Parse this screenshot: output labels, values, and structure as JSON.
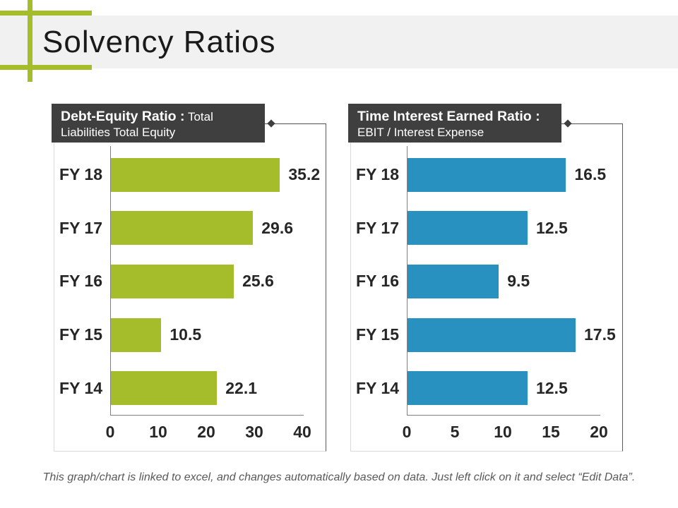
{
  "title": "Solvency Ratios",
  "footer": {
    "text": "This graph/chart is linked to excel, and changes automatically based on data. Just left click on it and select “Edit Data”."
  },
  "colors": {
    "accent_green": "#a5bc2b",
    "accent_blue": "#2991bf",
    "header_box": "#3f3f3f",
    "title_band": "#f1f1f1",
    "panel_border": "#d9d9d9",
    "axis_line": "#808080",
    "label_text": "#262626",
    "footer_text": "#595959"
  },
  "chart_data": [
    {
      "type": "bar",
      "orientation": "horizontal",
      "title_bold": "Debt-Equity Ratio :",
      "title_rest": "Total Liabilities Total Equity",
      "categories": [
        "FY 18",
        "FY 17",
        "FY 16",
        "FY 15",
        "FY 14"
      ],
      "values": [
        35.2,
        29.6,
        25.6,
        10.5,
        22.1
      ],
      "xlim": [
        0,
        40
      ],
      "xticks": [
        0,
        10,
        20,
        30,
        40
      ],
      "bar_color": "#a5bc2b",
      "grid": false,
      "legend": "none",
      "data_labels": true
    },
    {
      "type": "bar",
      "orientation": "horizontal",
      "title_bold": "Time Interest Earned Ratio :",
      "title_rest": "EBIT / Interest Expense",
      "categories": [
        "FY 18",
        "FY 17",
        "FY 16",
        "FY 15",
        "FY 14"
      ],
      "values": [
        16.5,
        12.5,
        9.5,
        17.5,
        12.5
      ],
      "xlim": [
        0,
        20
      ],
      "xticks": [
        0,
        5,
        10,
        15,
        20
      ],
      "bar_color": "#2991bf",
      "grid": false,
      "legend": "none",
      "data_labels": true
    }
  ]
}
